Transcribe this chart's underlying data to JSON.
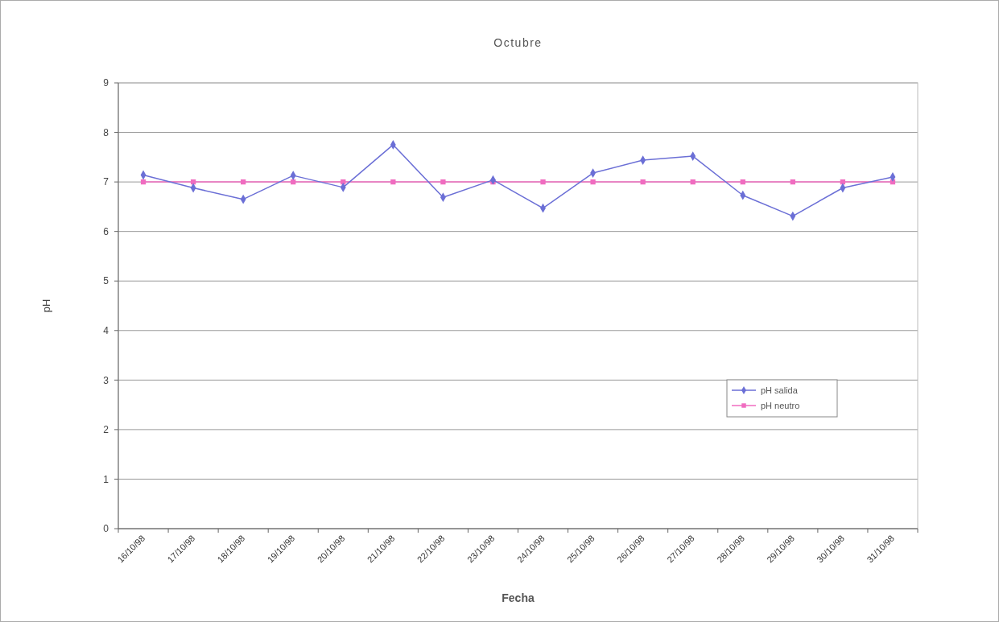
{
  "chart_data": {
    "type": "line",
    "title": "Octubre",
    "xlabel": "Fecha",
    "ylabel": "pH",
    "categories": [
      "16/10/98",
      "17/10/98",
      "18/10/98",
      "19/10/98",
      "20/10/98",
      "21/10/98",
      "22/10/98",
      "23/10/98",
      "24/10/98",
      "25/10/98",
      "26/10/98",
      "27/10/98",
      "28/10/98",
      "29/10/98",
      "30/10/98",
      "31/10/98"
    ],
    "series": [
      {
        "name": "pH salida",
        "color": "#6b6fd6",
        "marker": "diamond",
        "values": [
          7.14,
          6.88,
          6.65,
          7.13,
          6.89,
          7.75,
          6.69,
          7.04,
          6.47,
          7.18,
          7.44,
          7.52,
          6.73,
          6.31,
          6.88,
          7.1
        ]
      },
      {
        "name": "pH neutro",
        "color": "#f06cc0",
        "marker": "square",
        "values": [
          7,
          7,
          7,
          7,
          7,
          7,
          7,
          7,
          7,
          7,
          7,
          7,
          7,
          7,
          7,
          7
        ]
      }
    ],
    "ylim": [
      0,
      9
    ],
    "yticks": [
      0,
      1,
      2,
      3,
      4,
      5,
      6,
      7,
      8,
      9
    ],
    "grid": "y",
    "legend": "bottom right"
  }
}
